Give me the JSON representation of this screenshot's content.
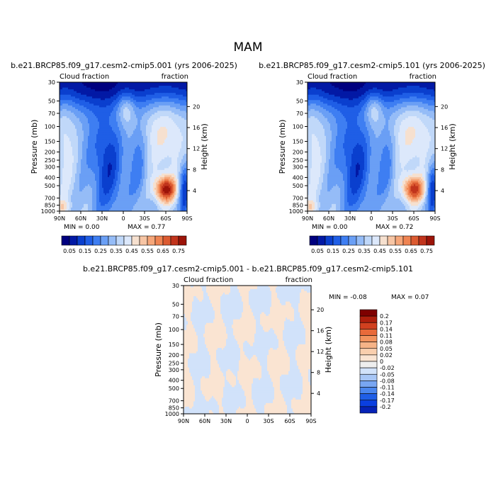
{
  "figure_title": "MAM",
  "colors": {
    "cf_levels": [
      "#00007f",
      "#0219a5",
      "#0a3fce",
      "#1f5ee6",
      "#3e7ef2",
      "#6a9ff5",
      "#95bcf7",
      "#c0d8f9",
      "#dce8fb",
      "#f6e0cf",
      "#f7c5a4",
      "#f6a679",
      "#ef8452",
      "#dc5b31",
      "#c1341c",
      "#9c1409",
      "#7e0000"
    ],
    "diff_levels": [
      "#00007f",
      "#0622b6",
      "#0a3fe0",
      "#1f5ee6",
      "#4a86ee",
      "#78a6f2",
      "#a7c6f6",
      "#d1e2fa",
      "#eeeeee",
      "#fae4d2",
      "#f9cfae",
      "#f6b387",
      "#f2935e",
      "#e86a3a",
      "#d1401f",
      "#ae1e0c",
      "#7e0000"
    ]
  },
  "chart_data": [
    {
      "type": "heatmap",
      "title": "b.e21.BRCP85.f09_g17.cesm2-cmip5.001 (yrs 2006-2025)",
      "left_label": "Cloud fraction",
      "right_label": "fraction",
      "ylabel": "Pressure (mb)",
      "ylabel_right": "Height (km)",
      "x_ticks": [
        "90N",
        "60N",
        "30N",
        "0",
        "30S",
        "60S",
        "90S"
      ],
      "y_ticks": [
        "30",
        "50",
        "70",
        "100",
        "150",
        "200",
        "250",
        "300",
        "400",
        "500",
        "700",
        "850",
        "1000"
      ],
      "y_ticks_right": [
        "20",
        "16",
        "12",
        "8",
        "4"
      ],
      "min_text": "MIN =    0.00",
      "max_text": "MAX =    0.77",
      "min": 0.0,
      "max": 0.77,
      "colorbar_labels": [
        "0.05",
        "0.15",
        "0.25",
        "0.35",
        "0.45",
        "0.55",
        "0.65",
        "0.75"
      ],
      "colorbar_levels": [
        0.05,
        0.1,
        0.15,
        0.2,
        0.25,
        0.3,
        0.35,
        0.4,
        0.45,
        0.5,
        0.55,
        0.6,
        0.65,
        0.7,
        0.75
      ]
    },
    {
      "type": "heatmap",
      "title": "b.e21.BRCP85.f09_g17.cesm2-cmip5.101 (yrs 2006-2025)",
      "left_label": "Cloud fraction",
      "right_label": "fraction",
      "ylabel": "Pressure (mb)",
      "ylabel_right": "Height (km)",
      "x_ticks": [
        "90N",
        "60N",
        "30N",
        "0",
        "30S",
        "60S",
        "90S"
      ],
      "y_ticks": [
        "30",
        "50",
        "70",
        "100",
        "150",
        "200",
        "250",
        "300",
        "400",
        "500",
        "700",
        "850",
        "1000"
      ],
      "y_ticks_right": [
        "20",
        "16",
        "12",
        "8",
        "4"
      ],
      "min_text": "MIN =    0.00",
      "max_text": "MAX =    0.72",
      "min": 0.0,
      "max": 0.72,
      "colorbar_labels": [
        "0.05",
        "0.15",
        "0.25",
        "0.35",
        "0.45",
        "0.55",
        "0.65",
        "0.75"
      ],
      "colorbar_levels": [
        0.05,
        0.1,
        0.15,
        0.2,
        0.25,
        0.3,
        0.35,
        0.4,
        0.45,
        0.5,
        0.55,
        0.6,
        0.65,
        0.7,
        0.75
      ]
    },
    {
      "type": "heatmap",
      "title": "b.e21.BRCP85.f09_g17.cesm2-cmip5.001 - b.e21.BRCP85.f09_g17.cesm2-cmip5.101",
      "left_label": "Cloud fraction",
      "right_label": "fraction",
      "ylabel": "Pressure (mb)",
      "ylabel_right": "Height (km)",
      "x_ticks": [
        "90N",
        "60N",
        "30N",
        "0",
        "30S",
        "60S",
        "90S"
      ],
      "y_ticks": [
        "30",
        "50",
        "70",
        "100",
        "150",
        "200",
        "250",
        "300",
        "400",
        "500",
        "700",
        "850",
        "1000"
      ],
      "y_ticks_right": [
        "20",
        "16",
        "12",
        "8",
        "4"
      ],
      "min_text": "MIN =   -0.08",
      "max_text": "MAX =    0.07",
      "min": -0.08,
      "max": 0.07,
      "colorbar_labels": [
        "0.2",
        "0.17",
        "0.14",
        "0.11",
        "0.08",
        "0.05",
        "0.02",
        "0",
        "-0.02",
        "-0.05",
        "-0.08",
        "-0.11",
        "-0.14",
        "-0.17",
        "-0.2"
      ],
      "colorbar_levels": [
        0.2,
        0.17,
        0.14,
        0.11,
        0.08,
        0.05,
        0.02,
        0,
        -0.02,
        -0.05,
        -0.08,
        -0.11,
        -0.14,
        -0.17,
        -0.2
      ]
    }
  ]
}
